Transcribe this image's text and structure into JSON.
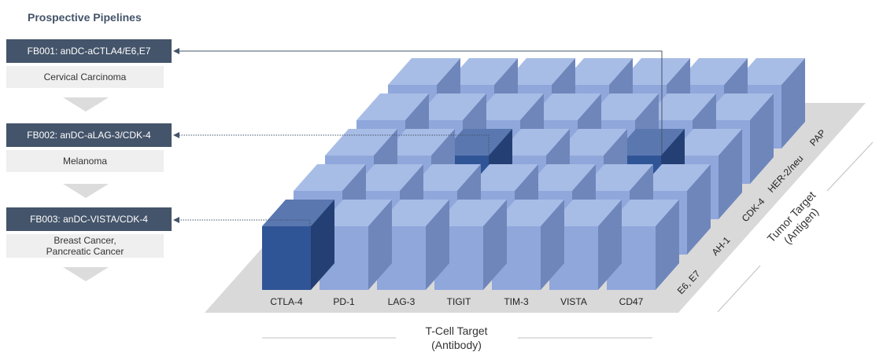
{
  "heading": "Prospective Pipelines",
  "pipelines": [
    {
      "code": "FB001: anDC-aCTLA4/E6,E7",
      "indication": "Cervical Carcinoma"
    },
    {
      "code": "FB002: anDC-aLAG-3/CDK-4",
      "indication": "Melanoma"
    },
    {
      "code": "FB003: anDC-VISTA/CDK-4",
      "indication": "Breast Cancer,\nPancreatic Cancer"
    }
  ],
  "tcell_targets": [
    "CTLA-4",
    "PD-1",
    "LAG-3",
    "TIGIT",
    "TIM-3",
    "VISTA",
    "CD47"
  ],
  "tumor_targets": [
    "E6, E7",
    "AH-1",
    "CDK-4",
    "HER-2/neu",
    "PAP"
  ],
  "x_axis_title": "T-Cell Target",
  "x_axis_subtitle": "(Antibody)",
  "y_axis_title": "Tumor Target",
  "y_axis_subtitle": "(Antigen)",
  "highlighted_cells": [
    {
      "tcell": "CTLA-4",
      "tumor": "E6, E7",
      "pipeline": "FB001"
    },
    {
      "tcell": "LAG-3",
      "tumor": "CDK-4",
      "pipeline": "FB002"
    },
    {
      "tcell": "VISTA",
      "tumor": "CDK-4",
      "pipeline": "FB003"
    }
  ],
  "colors": {
    "box_header": "#44546a",
    "box_body": "#efefef",
    "platform": "#d9d9d9",
    "cube_front": "#8fa7db",
    "cube_top": "#a8bde6",
    "cube_side": "#6f86bb",
    "highlight_front": "#2f5597",
    "highlight_top": "#5a77b0",
    "highlight_side": "#243f73"
  }
}
